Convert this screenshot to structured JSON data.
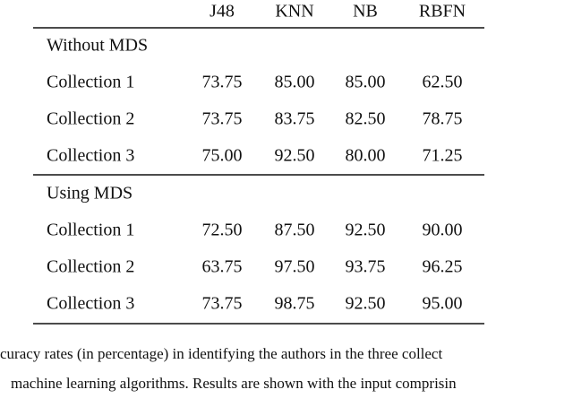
{
  "table": {
    "header": [
      "J48",
      "KNN",
      "NB",
      "RBFN"
    ],
    "sections": [
      {
        "title": "Without MDS",
        "rows": [
          [
            "Collection 1",
            "73.75",
            "85.00",
            "85.00",
            "62.50"
          ],
          [
            "Collection 2",
            "73.75",
            "83.75",
            "82.50",
            "78.75"
          ],
          [
            "Collection 3",
            "75.00",
            "92.50",
            "80.00",
            "71.25"
          ]
        ]
      },
      {
        "title": "Using MDS",
        "rows": [
          [
            "Collection 1",
            "72.50",
            "87.50",
            "92.50",
            "90.00"
          ],
          [
            "Collection 2",
            "63.75",
            "97.50",
            "93.75",
            "96.25"
          ],
          [
            "Collection 3",
            "73.75",
            "98.75",
            "92.50",
            "95.00"
          ]
        ]
      }
    ]
  },
  "caption": [
    "curacy rates (in percentage) in identifying the authors in the three collect",
    "machine learning algorithms. Results are shown with the input comprisin"
  ]
}
